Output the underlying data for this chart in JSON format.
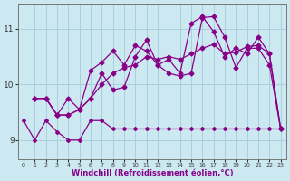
{
  "xlabel": "Windchill (Refroidissement éolien,°C)",
  "background_color": "#cce8f0",
  "grid_color": "#aacfde",
  "line_color": "#880088",
  "x_ticks": [
    0,
    1,
    2,
    3,
    4,
    5,
    6,
    7,
    8,
    9,
    10,
    11,
    12,
    13,
    14,
    15,
    16,
    17,
    18,
    19,
    20,
    21,
    22,
    23
  ],
  "y_ticks": [
    9,
    10,
    11
  ],
  "ylim": [
    8.65,
    11.45
  ],
  "xlim": [
    -0.5,
    23.5
  ],
  "line1_x": [
    0,
    1,
    2,
    3,
    4,
    5,
    6,
    7,
    8,
    9,
    10,
    11,
    12,
    13,
    14,
    15,
    16,
    17,
    18,
    19,
    20,
    21,
    22,
    23
  ],
  "line1_y": [
    9.35,
    9.0,
    9.35,
    9.15,
    9.0,
    9.0,
    9.35,
    9.35,
    9.2,
    9.2,
    9.2,
    9.2,
    9.2,
    9.2,
    9.2,
    9.2,
    9.2,
    9.2,
    9.2,
    9.2,
    9.2,
    9.2,
    9.2,
    9.2
  ],
  "line2_x": [
    1,
    2,
    3,
    4,
    5,
    6,
    7,
    8,
    9,
    10,
    11,
    12,
    13,
    14,
    15,
    16,
    17,
    18,
    19,
    20,
    21,
    22,
    23
  ],
  "line2_y": [
    9.75,
    9.75,
    9.45,
    9.45,
    9.55,
    9.75,
    10.2,
    9.9,
    9.95,
    10.5,
    10.8,
    10.35,
    10.2,
    10.15,
    10.2,
    11.2,
    11.22,
    10.85,
    10.3,
    10.65,
    10.65,
    10.35,
    9.2
  ],
  "line3_x": [
    1,
    2,
    3,
    4,
    5,
    6,
    7,
    8,
    9,
    10,
    11,
    12,
    13,
    14,
    15,
    16,
    17,
    18,
    19,
    20,
    21,
    22,
    23
  ],
  "line3_y": [
    9.75,
    9.75,
    9.45,
    9.75,
    9.55,
    10.25,
    10.4,
    10.6,
    10.35,
    10.7,
    10.6,
    10.35,
    10.45,
    10.2,
    11.1,
    11.22,
    10.95,
    10.5,
    10.65,
    10.55,
    10.85,
    10.55,
    9.2
  ],
  "line4_x": [
    1,
    2,
    3,
    4,
    5,
    6,
    7,
    8,
    9,
    10,
    11,
    12,
    13,
    14,
    15,
    16,
    17,
    18,
    19,
    20,
    21,
    22,
    23
  ],
  "line4_y": [
    9.75,
    9.75,
    9.45,
    9.45,
    9.55,
    9.75,
    10.0,
    10.2,
    10.3,
    10.35,
    10.5,
    10.45,
    10.5,
    10.45,
    10.55,
    10.65,
    10.72,
    10.55,
    10.58,
    10.68,
    10.7,
    10.55,
    9.2
  ]
}
